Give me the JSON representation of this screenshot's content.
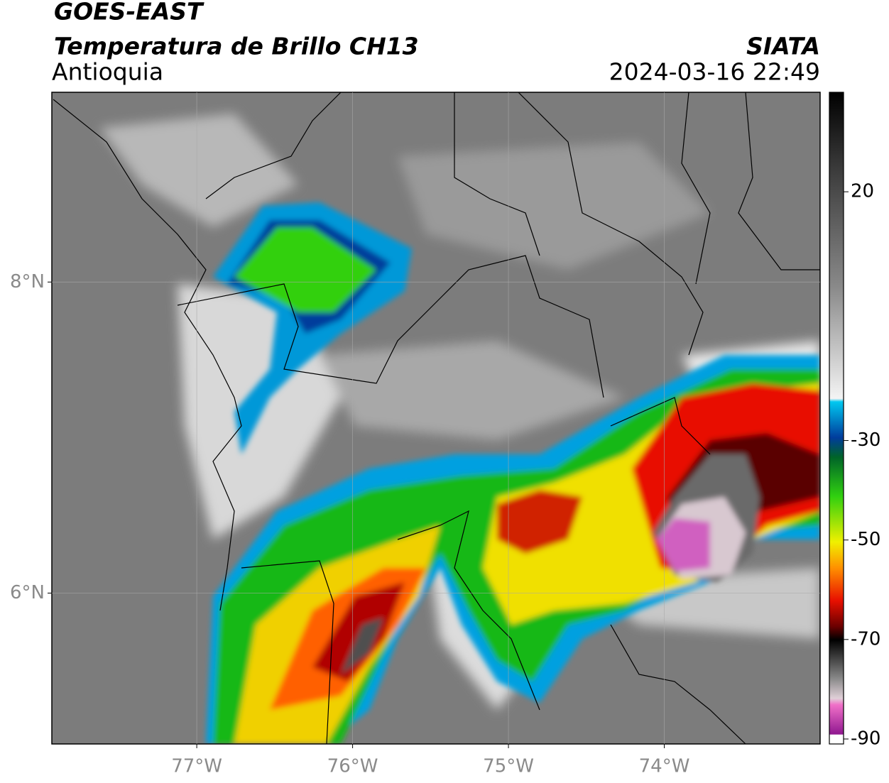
{
  "header": {
    "satellite": "GOES-EAST",
    "product": "Temperatura de Brillo CH13",
    "region": "Antioquia",
    "source": "SIATA",
    "datetime": "2024-03-16 22:49"
  },
  "map": {
    "lonlim": [
      -77.93,
      -73.0
    ],
    "latlim": [
      5.03,
      9.22
    ],
    "lonticks": [
      {
        "value": -77,
        "label": "77°W"
      },
      {
        "value": -76,
        "label": "76°W"
      },
      {
        "value": -75,
        "label": "75°W"
      },
      {
        "value": -74,
        "label": "74°W"
      }
    ],
    "latticks": [
      {
        "value": 8,
        "label": "8°N"
      },
      {
        "value": 6,
        "label": "6°N"
      }
    ],
    "grid": true
  },
  "colorbar": {
    "lim": [
      -91,
      40
    ],
    "ticks": [
      20,
      -30,
      -50,
      -70,
      -90
    ]
  }
}
